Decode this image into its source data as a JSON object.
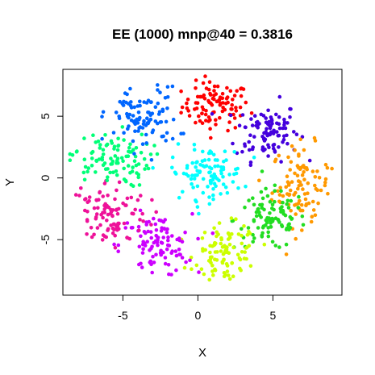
{
  "chart_data": {
    "type": "scatter",
    "title": "EE (1000) mnp@40 = 0.3816",
    "xlabel": "X",
    "ylabel": "Y",
    "xlim": [
      -9.0,
      9.6
    ],
    "ylim": [
      -9.5,
      8.8
    ],
    "xticks": [
      -5,
      0,
      5
    ],
    "yticks": [
      -5,
      0,
      5
    ],
    "xtick_labels": [
      "-5",
      "0",
      "5"
    ],
    "ytick_labels": [
      "-5",
      "0",
      "5"
    ],
    "grid": false,
    "legend": "none",
    "point_count": 1000,
    "clusters": [
      {
        "color": "#ff0000",
        "center": [
          1.2,
          5.8
        ],
        "spread": [
          1.5,
          1.3
        ],
        "count": 100
      },
      {
        "color": "#4400dd",
        "center": [
          4.6,
          3.8
        ],
        "spread": [
          1.4,
          1.6
        ],
        "count": 100
      },
      {
        "color": "#ff9900",
        "center": [
          6.9,
          -0.6
        ],
        "spread": [
          1.3,
          2.2
        ],
        "count": 100
      },
      {
        "color": "#22dd22",
        "center": [
          4.8,
          -3.4
        ],
        "spread": [
          1.6,
          1.6
        ],
        "count": 100
      },
      {
        "color": "#ccff00",
        "center": [
          1.9,
          -6.2
        ],
        "spread": [
          1.4,
          1.6
        ],
        "count": 100
      },
      {
        "color": "#cc00ff",
        "center": [
          -2.8,
          -5.5
        ],
        "spread": [
          1.6,
          1.7
        ],
        "count": 100
      },
      {
        "color": "#ee1199",
        "center": [
          -6.0,
          -2.9
        ],
        "spread": [
          1.8,
          1.9
        ],
        "count": 100
      },
      {
        "color": "#00ff77",
        "center": [
          -5.9,
          1.5
        ],
        "spread": [
          1.8,
          1.5
        ],
        "count": 100
      },
      {
        "color": "#0066ff",
        "center": [
          -3.7,
          4.8
        ],
        "spread": [
          1.6,
          1.7
        ],
        "count": 100
      },
      {
        "color": "#00ffff",
        "center": [
          0.6,
          0.4
        ],
        "spread": [
          1.6,
          1.4
        ],
        "count": 100
      }
    ]
  }
}
